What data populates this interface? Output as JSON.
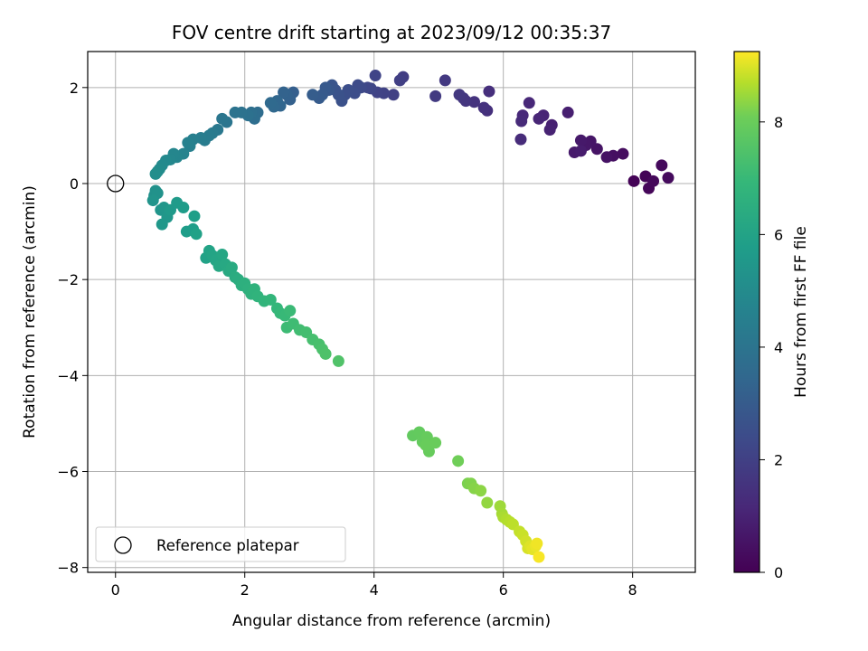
{
  "chart_data": {
    "type": "scatter",
    "title": "FOV centre drift starting at 2023/09/12 00:35:37",
    "xlabel": "Angular distance from reference (arcmin)",
    "ylabel": "Rotation from reference (arcmin)",
    "xlim": [
      -0.43,
      8.97
    ],
    "ylim": [
      -8.1,
      2.75
    ],
    "xticks": [
      0,
      2,
      4,
      6,
      8
    ],
    "yticks": [
      -8,
      -6,
      -4,
      -2,
      0,
      2
    ],
    "grid": true,
    "legend": {
      "position": "lower-left",
      "entries": [
        "Reference platepar"
      ]
    },
    "reference": {
      "name": "Reference platepar",
      "x": 0,
      "y": 0
    },
    "colorbar": {
      "label": "Hours from first FF file",
      "range": [
        0,
        9.25
      ],
      "ticks": [
        0,
        2,
        4,
        6,
        8
      ],
      "colormap": "viridis"
    },
    "series": [
      {
        "points": [
          [
            8.02,
            0.05,
            0.05
          ],
          [
            8.2,
            0.15,
            0.1
          ],
          [
            8.25,
            -0.1,
            0.15
          ],
          [
            8.32,
            0.05,
            0.2
          ],
          [
            8.45,
            0.38,
            0.25
          ],
          [
            8.55,
            0.12,
            0.3
          ],
          [
            7.85,
            0.62,
            0.35
          ],
          [
            7.7,
            0.58,
            0.42
          ],
          [
            7.6,
            0.55,
            0.5
          ],
          [
            7.45,
            0.72,
            0.55
          ],
          [
            7.35,
            0.88,
            0.6
          ],
          [
            7.28,
            0.8,
            0.65
          ],
          [
            7.2,
            0.9,
            0.7
          ],
          [
            7.1,
            0.65,
            0.75
          ],
          [
            7.2,
            0.68,
            0.8
          ],
          [
            7.0,
            1.48,
            0.9
          ],
          [
            6.75,
            1.22,
            0.95
          ],
          [
            6.72,
            1.12,
            1.0
          ],
          [
            6.62,
            1.42,
            1.05
          ],
          [
            6.55,
            1.35,
            1.1
          ],
          [
            6.4,
            1.68,
            1.15
          ],
          [
            6.3,
            1.42,
            1.2
          ],
          [
            6.28,
            1.3,
            1.25
          ],
          [
            6.27,
            0.92,
            1.3
          ],
          [
            5.78,
            1.92,
            1.4
          ],
          [
            5.75,
            1.52,
            1.45
          ],
          [
            5.7,
            1.58,
            1.5
          ],
          [
            5.55,
            1.7,
            1.55
          ],
          [
            5.42,
            1.72,
            1.6
          ],
          [
            5.38,
            1.78,
            1.65
          ],
          [
            5.32,
            1.85,
            1.7
          ],
          [
            5.1,
            2.15,
            1.75
          ],
          [
            4.95,
            1.82,
            1.8
          ],
          [
            4.45,
            2.22,
            1.9
          ],
          [
            4.4,
            2.15,
            1.95
          ],
          [
            4.3,
            1.85,
            2.0
          ],
          [
            4.15,
            1.88,
            2.05
          ],
          [
            4.05,
            1.9,
            2.1
          ],
          [
            4.02,
            2.25,
            2.15
          ],
          [
            3.95,
            1.98,
            2.2
          ],
          [
            3.9,
            2.0,
            2.25
          ],
          [
            3.8,
            2.0,
            2.35
          ],
          [
            3.75,
            2.05,
            2.4
          ],
          [
            3.7,
            1.88,
            2.45
          ],
          [
            3.6,
            1.95,
            2.5
          ],
          [
            3.55,
            1.85,
            2.55
          ],
          [
            3.5,
            1.72,
            2.6
          ],
          [
            3.45,
            1.85,
            2.65
          ],
          [
            3.4,
            1.95,
            2.7
          ],
          [
            3.35,
            2.05,
            2.75
          ],
          [
            3.3,
            1.95,
            2.85
          ],
          [
            3.25,
            2.0,
            2.9
          ],
          [
            3.2,
            1.85,
            2.95
          ],
          [
            3.15,
            1.78,
            3.0
          ],
          [
            3.05,
            1.85,
            3.05
          ],
          [
            2.75,
            1.9,
            3.15
          ],
          [
            2.7,
            1.75,
            3.2
          ],
          [
            2.65,
            1.85,
            3.25
          ],
          [
            2.6,
            1.9,
            3.3
          ],
          [
            2.55,
            1.62,
            3.4
          ],
          [
            2.5,
            1.72,
            3.45
          ],
          [
            2.45,
            1.6,
            3.5
          ],
          [
            2.4,
            1.68,
            3.55
          ],
          [
            2.2,
            1.48,
            3.7
          ],
          [
            2.15,
            1.35,
            3.75
          ],
          [
            2.1,
            1.48,
            3.8
          ],
          [
            2.05,
            1.42,
            3.85
          ],
          [
            1.95,
            1.48,
            3.9
          ],
          [
            1.85,
            1.48,
            3.95
          ],
          [
            1.72,
            1.28,
            4.05
          ],
          [
            1.65,
            1.35,
            4.1
          ],
          [
            1.58,
            1.12,
            4.2
          ],
          [
            1.5,
            1.05,
            4.25
          ],
          [
            1.45,
            1.0,
            4.3
          ],
          [
            1.38,
            0.9,
            4.35
          ],
          [
            1.32,
            0.95,
            4.4
          ],
          [
            1.2,
            0.92,
            4.5
          ],
          [
            1.15,
            0.78,
            4.55
          ],
          [
            1.12,
            0.85,
            4.6
          ],
          [
            1.05,
            0.62,
            4.65
          ],
          [
            0.95,
            0.55,
            4.75
          ],
          [
            0.9,
            0.62,
            4.8
          ],
          [
            0.85,
            0.5,
            4.85
          ],
          [
            0.78,
            0.48,
            4.9
          ],
          [
            0.72,
            0.38,
            4.95
          ],
          [
            0.68,
            0.3,
            5.0
          ],
          [
            0.65,
            0.25,
            5.05
          ],
          [
            0.62,
            0.2,
            5.1
          ],
          [
            0.6,
            -0.25,
            5.2
          ],
          [
            0.62,
            -0.15,
            5.25
          ],
          [
            0.65,
            -0.2,
            5.3
          ],
          [
            0.58,
            -0.35,
            5.35
          ],
          [
            0.7,
            -0.55,
            5.4
          ],
          [
            0.75,
            -0.5,
            5.45
          ],
          [
            0.8,
            -0.7,
            5.5
          ],
          [
            0.72,
            -0.85,
            5.55
          ],
          [
            0.85,
            -0.55,
            5.6
          ],
          [
            0.95,
            -0.4,
            5.65
          ],
          [
            1.05,
            -0.5,
            5.7
          ],
          [
            1.1,
            -1.0,
            5.75
          ],
          [
            1.2,
            -0.95,
            5.8
          ],
          [
            1.22,
            -0.68,
            5.85
          ],
          [
            1.25,
            -1.05,
            5.9
          ],
          [
            1.4,
            -1.55,
            5.95
          ],
          [
            1.45,
            -1.4,
            6.0
          ],
          [
            1.5,
            -1.5,
            6.05
          ],
          [
            1.55,
            -1.6,
            6.1
          ],
          [
            1.65,
            -1.48,
            6.15
          ],
          [
            1.6,
            -1.72,
            6.2
          ],
          [
            1.7,
            -1.68,
            6.25
          ],
          [
            1.75,
            -1.82,
            6.3
          ],
          [
            1.8,
            -1.75,
            6.35
          ],
          [
            1.85,
            -1.95,
            6.4
          ],
          [
            1.9,
            -2.0,
            6.45
          ],
          [
            1.95,
            -2.12,
            6.5
          ],
          [
            2.0,
            -2.08,
            6.55
          ],
          [
            2.05,
            -2.2,
            6.6
          ],
          [
            2.1,
            -2.3,
            6.65
          ],
          [
            2.15,
            -2.2,
            6.7
          ],
          [
            2.2,
            -2.35,
            6.75
          ],
          [
            2.3,
            -2.45,
            6.8
          ],
          [
            2.4,
            -2.42,
            6.85
          ],
          [
            2.5,
            -2.6,
            6.9
          ],
          [
            2.55,
            -2.7,
            6.95
          ],
          [
            2.62,
            -2.75,
            7.0
          ],
          [
            2.7,
            -2.65,
            7.05
          ],
          [
            2.65,
            -3.0,
            7.1
          ],
          [
            2.75,
            -2.92,
            7.15
          ],
          [
            2.85,
            -3.05,
            7.2
          ],
          [
            2.95,
            -3.1,
            7.25
          ],
          [
            3.05,
            -3.25,
            7.3
          ],
          [
            3.15,
            -3.35,
            7.35
          ],
          [
            3.2,
            -3.45,
            7.4
          ],
          [
            3.25,
            -3.55,
            7.45
          ],
          [
            3.45,
            -3.7,
            7.5
          ],
          [
            4.6,
            -5.25,
            7.85
          ],
          [
            4.7,
            -5.18,
            7.88
          ],
          [
            4.75,
            -5.38,
            7.9
          ],
          [
            4.82,
            -5.28,
            7.93
          ],
          [
            4.85,
            -5.58,
            7.96
          ],
          [
            4.8,
            -5.45,
            7.98
          ],
          [
            4.95,
            -5.4,
            8.0
          ],
          [
            5.3,
            -5.78,
            8.1
          ],
          [
            5.45,
            -6.25,
            8.2
          ],
          [
            5.5,
            -6.25,
            8.25
          ],
          [
            5.55,
            -6.35,
            8.3
          ],
          [
            5.65,
            -6.4,
            8.35
          ],
          [
            5.75,
            -6.65,
            8.4
          ],
          [
            5.95,
            -6.72,
            8.5
          ],
          [
            5.98,
            -6.88,
            8.55
          ],
          [
            6.0,
            -6.95,
            8.6
          ],
          [
            6.05,
            -7.0,
            8.65
          ],
          [
            6.1,
            -7.05,
            8.7
          ],
          [
            6.15,
            -7.1,
            8.75
          ],
          [
            6.25,
            -7.25,
            8.8
          ],
          [
            6.3,
            -7.32,
            8.85
          ],
          [
            6.35,
            -7.45,
            8.9
          ],
          [
            6.38,
            -7.6,
            8.95
          ],
          [
            6.42,
            -7.55,
            9.0
          ],
          [
            6.45,
            -7.62,
            9.05
          ],
          [
            6.5,
            -7.55,
            9.1
          ],
          [
            6.52,
            -7.5,
            9.15
          ],
          [
            6.55,
            -7.78,
            9.2
          ]
        ]
      }
    ]
  }
}
